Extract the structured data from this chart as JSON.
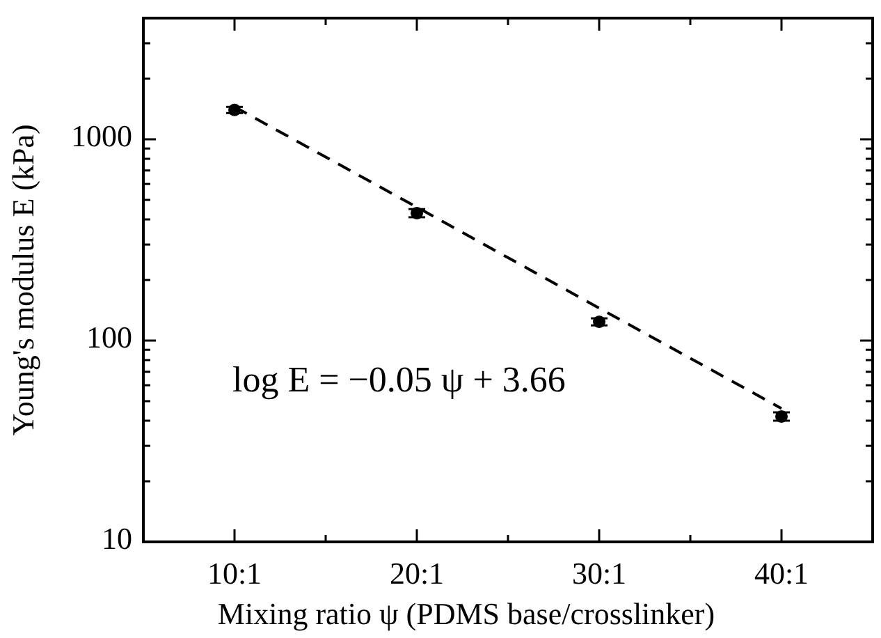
{
  "chart_data": {
    "type": "scatter",
    "xlabel": "Mixing ratio ψ (PDMS base/crosslinker)",
    "ylabel": "Young's modulus E (kPa)",
    "log": "y",
    "grid": false,
    "ylim": [
      10,
      4000
    ],
    "categories": [
      "10:1",
      "20:1",
      "30:1",
      "40:1"
    ],
    "yticks": [
      10,
      {
        "value": 20,
        "label": null
      },
      {
        "value": 30,
        "label": null
      },
      {
        "value": 40,
        "label": null
      },
      {
        "value": 50,
        "label": null
      },
      {
        "value": 60,
        "label": null
      },
      {
        "value": 70,
        "label": null
      },
      {
        "value": 80,
        "label": null
      },
      {
        "value": 90,
        "label": null
      },
      100,
      {
        "value": 200,
        "label": null
      },
      {
        "value": 300,
        "label": null
      },
      {
        "value": 400,
        "label": null
      },
      {
        "value": 500,
        "label": null
      },
      {
        "value": 600,
        "label": null
      },
      {
        "value": 700,
        "label": null
      },
      {
        "value": 800,
        "label": null
      },
      {
        "value": 900,
        "label": null
      },
      1000,
      {
        "value": 2000,
        "label": null
      },
      {
        "value": 3000,
        "label": null
      },
      {
        "value": 4000,
        "label": null
      }
    ],
    "series": [
      {
        "color": "#000000",
        "marker": "circle",
        "values": [
          1400,
          430,
          124,
          42
        ],
        "errors": [
          50,
          20,
          5,
          2
        ]
      },
      {
        "type": "line",
        "color": "#000000",
        "marker": "none",
        "line_style": "dashed",
        "values": [
          1450,
          460,
          145,
          46
        ]
      }
    ],
    "annotations": [
      "log E = −0.05 ψ + 3.66"
    ]
  }
}
